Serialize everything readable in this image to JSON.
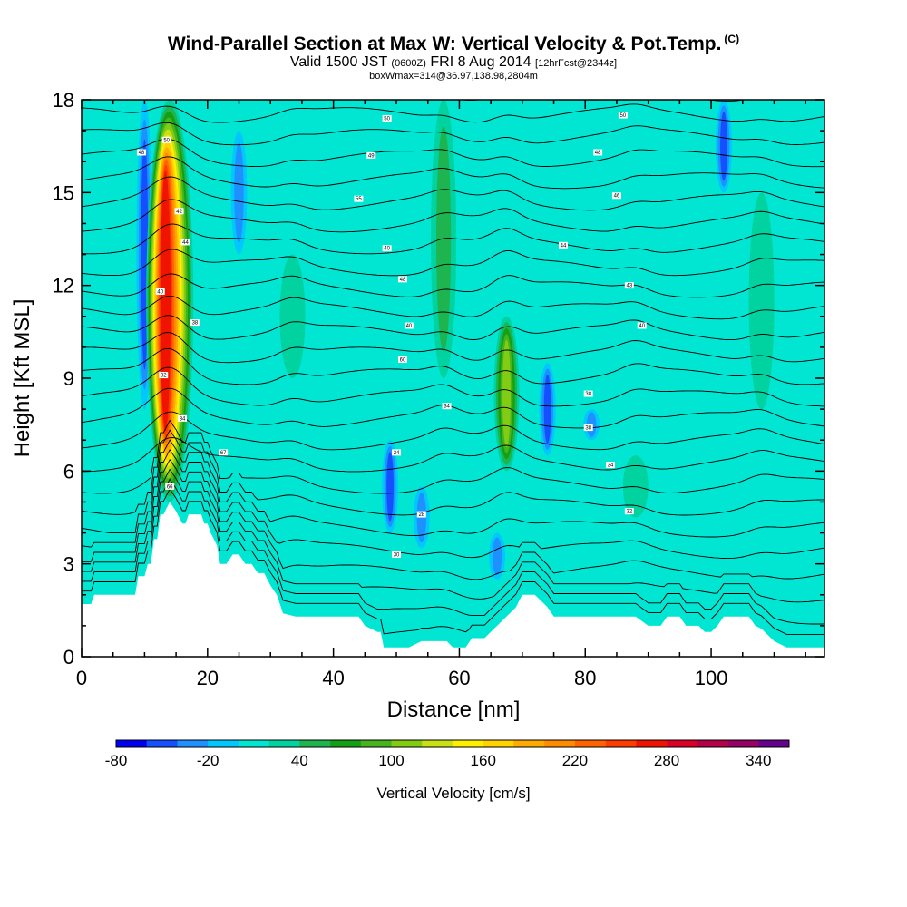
{
  "header": {
    "title": "Wind-Parallel Section at Max W: Vertical Velocity & Pot.Temp.",
    "copyright": "(C)",
    "valid_prefix": "Valid 1500 JST",
    "valid_utc": "(0600Z)",
    "valid_date": "FRI 8 Aug 2014",
    "forecast": "[12hrFcst@2344z]",
    "box_info": "boxWmax=314@36.97,138.98,2804m"
  },
  "chart_data": {
    "type": "heatmap",
    "xlabel": "Distance [nm]",
    "ylabel": "Height [Kft MSL]",
    "xlim": [
      0,
      118
    ],
    "ylim": [
      0,
      18
    ],
    "x_ticks": [
      0,
      20,
      40,
      60,
      80,
      100
    ],
    "y_ticks": [
      0,
      3,
      6,
      9,
      12,
      15,
      18
    ],
    "colorbar": {
      "label": "Vertical Velocity [cm/s]",
      "labels": [
        -80,
        -20,
        40,
        100,
        160,
        220,
        280,
        340
      ],
      "levels": [
        -80,
        -60,
        -40,
        -20,
        0,
        20,
        40,
        60,
        80,
        100,
        120,
        140,
        160,
        180,
        200,
        220,
        240,
        260,
        280,
        300,
        320,
        340,
        360
      ],
      "colors": [
        "#0000f0",
        "#1450ff",
        "#1e90ff",
        "#00c8ff",
        "#00e6d2",
        "#00d2a0",
        "#1eb450",
        "#14a014",
        "#46b41e",
        "#82cd14",
        "#c8e114",
        "#fff000",
        "#ffd200",
        "#ffaa00",
        "#ff8c00",
        "#ff6400",
        "#ff3c00",
        "#f01400",
        "#dc0028",
        "#b40046",
        "#960064",
        "#64008c"
      ]
    },
    "background_value": 10,
    "updrafts": [
      {
        "x": 14,
        "w": 280,
        "range_kft": [
          5,
          18
        ]
      },
      {
        "x": 57.5,
        "w": 45,
        "range_kft": [
          9,
          18
        ]
      },
      {
        "x": 67.5,
        "w": 110,
        "range_kft": [
          6,
          11
        ]
      },
      {
        "x": 33.5,
        "w": 35,
        "range_kft": [
          9,
          13
        ]
      },
      {
        "x": 88,
        "w": 30,
        "range_kft": [
          4.5,
          6.5
        ]
      },
      {
        "x": 108,
        "w": 30,
        "range_kft": [
          8,
          15
        ]
      }
    ],
    "downdrafts": [
      {
        "x": 10,
        "w": -40,
        "range_kft": [
          8,
          18
        ]
      },
      {
        "x": 25,
        "w": -30,
        "range_kft": [
          13,
          17
        ]
      },
      {
        "x": 49,
        "w": -40,
        "range_kft": [
          4,
          7
        ]
      },
      {
        "x": 74,
        "w": -50,
        "range_kft": [
          6.5,
          9.5
        ]
      },
      {
        "x": 81,
        "w": -35,
        "range_kft": [
          7,
          8
        ]
      },
      {
        "x": 54,
        "w": -30,
        "range_kft": [
          3.5,
          5.5
        ]
      },
      {
        "x": 66,
        "w": -30,
        "range_kft": [
          2.5,
          4
        ]
      },
      {
        "x": 102,
        "w": -40,
        "range_kft": [
          15,
          18
        ]
      }
    ],
    "terrain": {
      "x": [
        0,
        0.5,
        1.5,
        2,
        8.5,
        9,
        10,
        10.5,
        11,
        11.5,
        12,
        12.5,
        13,
        14,
        15,
        16,
        16.5,
        17,
        19,
        19.5,
        20,
        20.5,
        21,
        21.5,
        22,
        23,
        24,
        25,
        26,
        27,
        28,
        29,
        30,
        31,
        32,
        34,
        36,
        38,
        40,
        42,
        44,
        45,
        46,
        47,
        47.5,
        48,
        50,
        52,
        54,
        56,
        58,
        59,
        60,
        61,
        62,
        63,
        64,
        65,
        66,
        67,
        68,
        69,
        70,
        71,
        72,
        73,
        74,
        75,
        76,
        77,
        78,
        80,
        82,
        84,
        86,
        88,
        90,
        91,
        92,
        93,
        94,
        95,
        96,
        97,
        98,
        99,
        100,
        101,
        102,
        103,
        104,
        105,
        106,
        107,
        108,
        110,
        112,
        114,
        116,
        118
      ],
      "h": [
        1.7,
        1.7,
        1.7,
        2,
        2,
        2.6,
        2.6,
        3,
        3,
        3.8,
        3.8,
        4.6,
        4.6,
        5,
        4.7,
        4.3,
        4.3,
        4.6,
        4.6,
        4.3,
        4.3,
        4,
        3.8,
        3.6,
        3,
        3,
        3.3,
        3.3,
        3,
        3,
        2.7,
        2.7,
        2.3,
        2,
        1.4,
        1.3,
        1.3,
        1.3,
        1.3,
        1.3,
        1.3,
        1,
        0.9,
        0.8,
        0.8,
        0.3,
        0.3,
        0.3,
        0.5,
        0.5,
        0.5,
        0.3,
        0.3,
        0.3,
        0.6,
        0.6,
        0.6,
        0.8,
        1,
        1.2,
        1.4,
        1.6,
        2,
        2,
        2,
        1.8,
        1.6,
        1.3,
        1.3,
        1.3,
        1.3,
        1.3,
        1.3,
        1.3,
        1.3,
        1.3,
        1,
        1,
        1,
        1.3,
        1.3,
        1.3,
        1,
        1,
        1,
        0.8,
        0.8,
        1,
        1.3,
        1.3,
        1.3,
        1.3,
        1.3,
        1,
        0.9,
        0.5,
        0.3,
        0.3,
        0.3,
        0.3
      ],
      "color": "#ffffff"
    },
    "isentropes": {
      "count": 26,
      "labels": [
        {
          "x": 9.5,
          "y": 16.3,
          "text": "48"
        },
        {
          "x": 13.5,
          "y": 16.7,
          "text": "50"
        },
        {
          "x": 15.5,
          "y": 14.4,
          "text": "42"
        },
        {
          "x": 16.5,
          "y": 13.4,
          "text": "44"
        },
        {
          "x": 12.5,
          "y": 11.8,
          "text": "40"
        },
        {
          "x": 18,
          "y": 10.8,
          "text": "38"
        },
        {
          "x": 13,
          "y": 9.1,
          "text": "32"
        },
        {
          "x": 16,
          "y": 7.7,
          "text": "34"
        },
        {
          "x": 22.5,
          "y": 6.6,
          "text": "67"
        },
        {
          "x": 14,
          "y": 5.5,
          "text": "66"
        },
        {
          "x": 48.5,
          "y": 17.4,
          "text": "50"
        },
        {
          "x": 46,
          "y": 16.2,
          "text": "49"
        },
        {
          "x": 44,
          "y": 14.8,
          "text": "55"
        },
        {
          "x": 48.5,
          "y": 13.2,
          "text": "40"
        },
        {
          "x": 51,
          "y": 12.2,
          "text": "48"
        },
        {
          "x": 52,
          "y": 10.7,
          "text": "40"
        },
        {
          "x": 51,
          "y": 9.6,
          "text": "60"
        },
        {
          "x": 58,
          "y": 8.1,
          "text": "34"
        },
        {
          "x": 50,
          "y": 6.6,
          "text": "24"
        },
        {
          "x": 54,
          "y": 4.6,
          "text": "28"
        },
        {
          "x": 50,
          "y": 3.3,
          "text": "30"
        },
        {
          "x": 86,
          "y": 17.5,
          "text": "50"
        },
        {
          "x": 82,
          "y": 16.3,
          "text": "48"
        },
        {
          "x": 85,
          "y": 14.9,
          "text": "46"
        },
        {
          "x": 76.5,
          "y": 13.3,
          "text": "44"
        },
        {
          "x": 87,
          "y": 12,
          "text": "43"
        },
        {
          "x": 89,
          "y": 10.7,
          "text": "40"
        },
        {
          "x": 80.5,
          "y": 8.5,
          "text": "38"
        },
        {
          "x": 80.5,
          "y": 7.4,
          "text": "38"
        },
        {
          "x": 84,
          "y": 6.2,
          "text": "34"
        },
        {
          "x": 87,
          "y": 4.7,
          "text": "32"
        }
      ]
    }
  }
}
